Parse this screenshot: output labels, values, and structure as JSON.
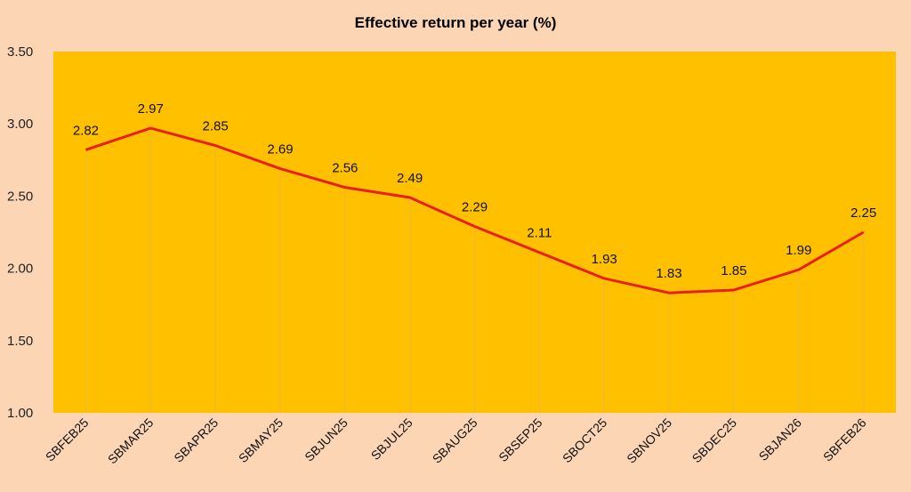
{
  "chart_data": {
    "type": "line",
    "title": "Effective return per year (%)",
    "xlabel": "",
    "ylabel": "",
    "categories": [
      "SBFEB25",
      "SBMAR25",
      "SBAPR25",
      "SBMAY25",
      "SBJUN25",
      "SBJUL25",
      "SBAUG25",
      "SBSEP25",
      "SBOCT25",
      "SBNOV25",
      "SBDEC25",
      "SBJAN26",
      "SBFEB26"
    ],
    "values": [
      2.82,
      2.97,
      2.85,
      2.69,
      2.56,
      2.49,
      2.29,
      2.11,
      1.93,
      1.83,
      1.85,
      1.99,
      2.25
    ],
    "data_labels": [
      "2.82",
      "2.97",
      "2.85",
      "2.69",
      "2.56",
      "2.49",
      "2.29",
      "2.11",
      "1.93",
      "1.83",
      "1.85",
      "1.99",
      "2.25"
    ],
    "ylim": [
      1.0,
      3.5
    ],
    "yticks": [
      "1.00",
      "1.50",
      "2.00",
      "2.50",
      "3.00",
      "3.50"
    ],
    "grid": "vertical drop lines only",
    "legend": "none",
    "colors": {
      "background": "#FCD5B5",
      "plot_area": "#FFC000",
      "line": "#E8201A",
      "drop_lines": "#E6B15A"
    }
  }
}
